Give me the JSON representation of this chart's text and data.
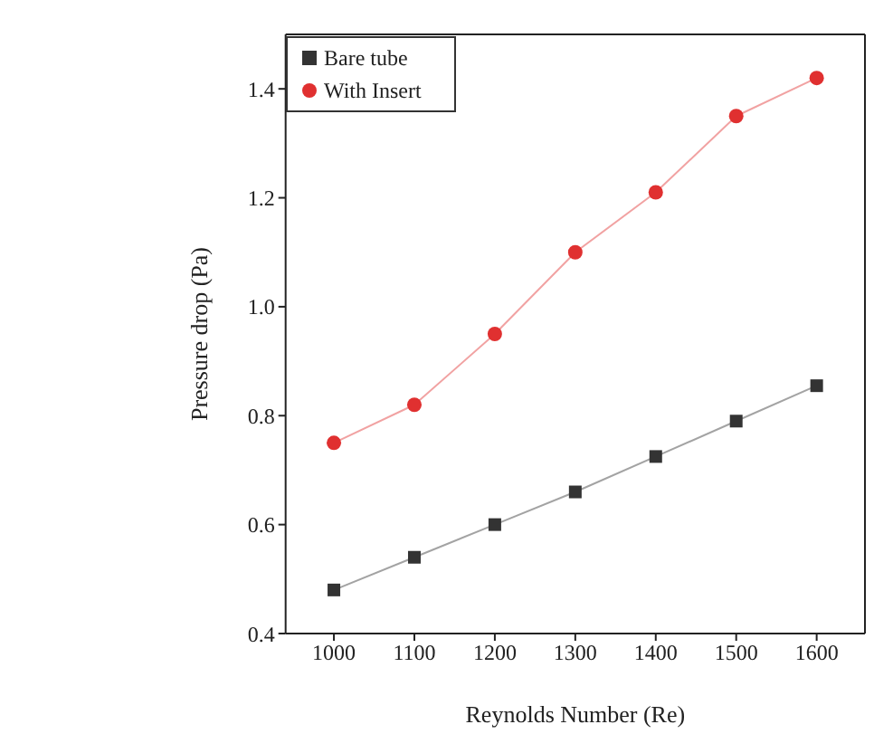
{
  "chart_data": {
    "type": "line",
    "xlabel": "Reynolds Number (Re)",
    "ylabel": "Pressure drop (Pa)",
    "x": [
      1000,
      1100,
      1200,
      1300,
      1400,
      1500,
      1600
    ],
    "series": [
      {
        "name": "Bare tube",
        "color": "#333333",
        "marker": "square",
        "values": [
          0.48,
          0.54,
          0.6,
          0.66,
          0.725,
          0.79,
          0.855
        ]
      },
      {
        "name": "With Insert",
        "color": "#e03030",
        "marker": "circle",
        "values": [
          0.75,
          0.82,
          0.95,
          1.1,
          1.21,
          1.35,
          1.42
        ]
      }
    ],
    "xlim": [
      940,
      1660
    ],
    "xticks": [
      1000,
      1100,
      1200,
      1300,
      1400,
      1500,
      1600
    ],
    "ylim": [
      0.4,
      1.5
    ],
    "yticks": [
      0.4,
      0.6,
      0.8,
      {
        "value": 1,
        "label": "1.0"
      },
      1.2,
      1.4
    ],
    "grid": false,
    "legend": "top left",
    "line_style": "solid"
  }
}
